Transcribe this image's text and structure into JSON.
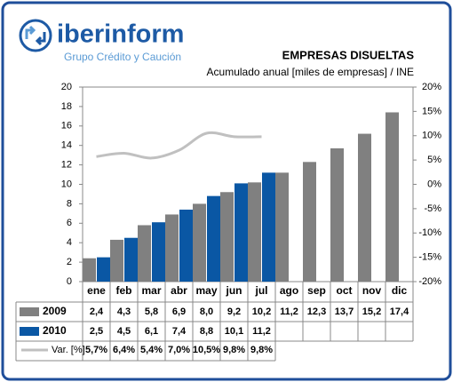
{
  "brand": {
    "name": "iberinform",
    "tagline": "Grupo Crédito y Caución"
  },
  "chart_data": {
    "type": "bar",
    "title": "EMPRESAS DISUELTAS",
    "subtitle": "Acumulado anual [miles de empresas] / INE",
    "categories": [
      "ene",
      "feb",
      "mar",
      "abr",
      "may",
      "jun",
      "jul",
      "ago",
      "sep",
      "oct",
      "nov",
      "dic"
    ],
    "series": [
      {
        "name": "2009",
        "color": "#808080",
        "values": [
          2.4,
          4.3,
          5.8,
          6.9,
          8.0,
          9.2,
          10.2,
          11.2,
          12.3,
          13.7,
          15.2,
          17.4
        ],
        "value_labels": [
          "2,4",
          "4,3",
          "5,8",
          "6,9",
          "8,0",
          "9,2",
          "10,2",
          "11,2",
          "12,3",
          "13,7",
          "15,2",
          "17,4"
        ]
      },
      {
        "name": "2010",
        "color": "#0a57a4",
        "values": [
          2.5,
          4.5,
          6.1,
          7.4,
          8.8,
          10.1,
          11.2,
          null,
          null,
          null,
          null,
          null
        ],
        "value_labels": [
          "2,5",
          "4,5",
          "6,1",
          "7,4",
          "8,8",
          "10,1",
          "11,2",
          null,
          null,
          null,
          null,
          null
        ]
      },
      {
        "name": "Var. [%]",
        "color": "#c0c0c0",
        "axis": "y2",
        "values": [
          5.7,
          6.4,
          5.4,
          7.0,
          10.5,
          9.8,
          9.8,
          null,
          null,
          null,
          null,
          null
        ],
        "value_labels": [
          "5,7%",
          "6,4%",
          "5,4%",
          "7,0%",
          "10,5%",
          "9,8%",
          "9,8%",
          null,
          null,
          null,
          null,
          null
        ]
      }
    ],
    "ylim": [
      0,
      20
    ],
    "yticks": [
      0,
      2,
      4,
      6,
      8,
      10,
      12,
      14,
      16,
      18,
      20
    ],
    "y2lim": [
      -20,
      20
    ],
    "y2ticks": [
      {
        "value": -20,
        "label": "-20%"
      },
      {
        "value": -15,
        "label": "-15%"
      },
      {
        "value": -10,
        "label": "-10%"
      },
      {
        "value": -5,
        "label": "-5%"
      },
      {
        "value": 0,
        "label": "0%"
      },
      {
        "value": 5,
        "label": "5%"
      },
      {
        "value": 10,
        "label": "10%"
      },
      {
        "value": 15,
        "label": "15%"
      },
      {
        "value": 20,
        "label": "20%"
      }
    ]
  }
}
